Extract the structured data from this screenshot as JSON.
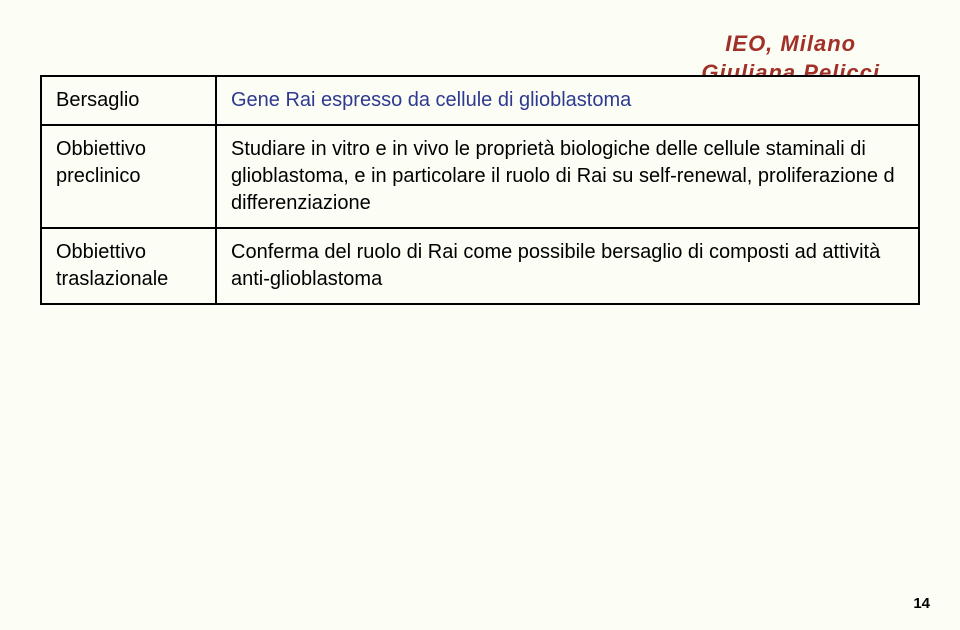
{
  "header": {
    "line1": "IEO, Milano",
    "line2": "Giuliana Pelicci",
    "title_color": "#a03028",
    "title_fontsize": 22
  },
  "table": {
    "rows": [
      {
        "label": "Bersaglio",
        "value": "Gene Rai espresso da cellule di glioblastoma",
        "value_color": "#2e3a8f"
      },
      {
        "label": "Obbiettivo preclinico",
        "value": "Studiare in vitro e in vivo le proprietà biologiche delle cellule staminali di glioblastoma, e in particolare il ruolo di Rai su self-renewal, proliferazione d differenziazione",
        "value_color": "#000000"
      },
      {
        "label": "Obbiettivo traslazionale",
        "value": "Conferma del ruolo di Rai come possibile bersaglio di composti ad attività anti-glioblastoma",
        "value_color": "#000000"
      }
    ],
    "label_color": "#000000",
    "border_color": "#000000",
    "font_size": 20
  },
  "page_number": "14",
  "background_color": "#fcfdf5"
}
